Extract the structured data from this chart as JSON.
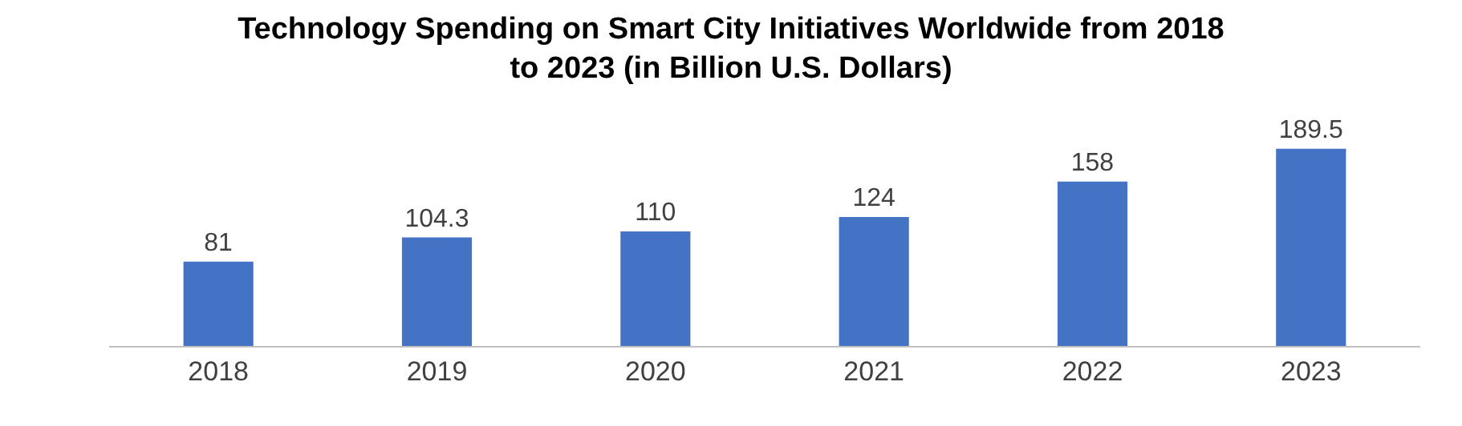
{
  "chart_data": {
    "type": "bar",
    "title": "Technology Spending on Smart City Initiatives Worldwide from 2018 to 2023 (in Billion U.S. Dollars)",
    "categories": [
      "2018",
      "2019",
      "2020",
      "2021",
      "2022",
      "2023"
    ],
    "values": [
      81,
      104.3,
      110,
      124,
      158,
      189.5
    ],
    "color": "#4472c4",
    "data_labels": true,
    "legend": false
  }
}
